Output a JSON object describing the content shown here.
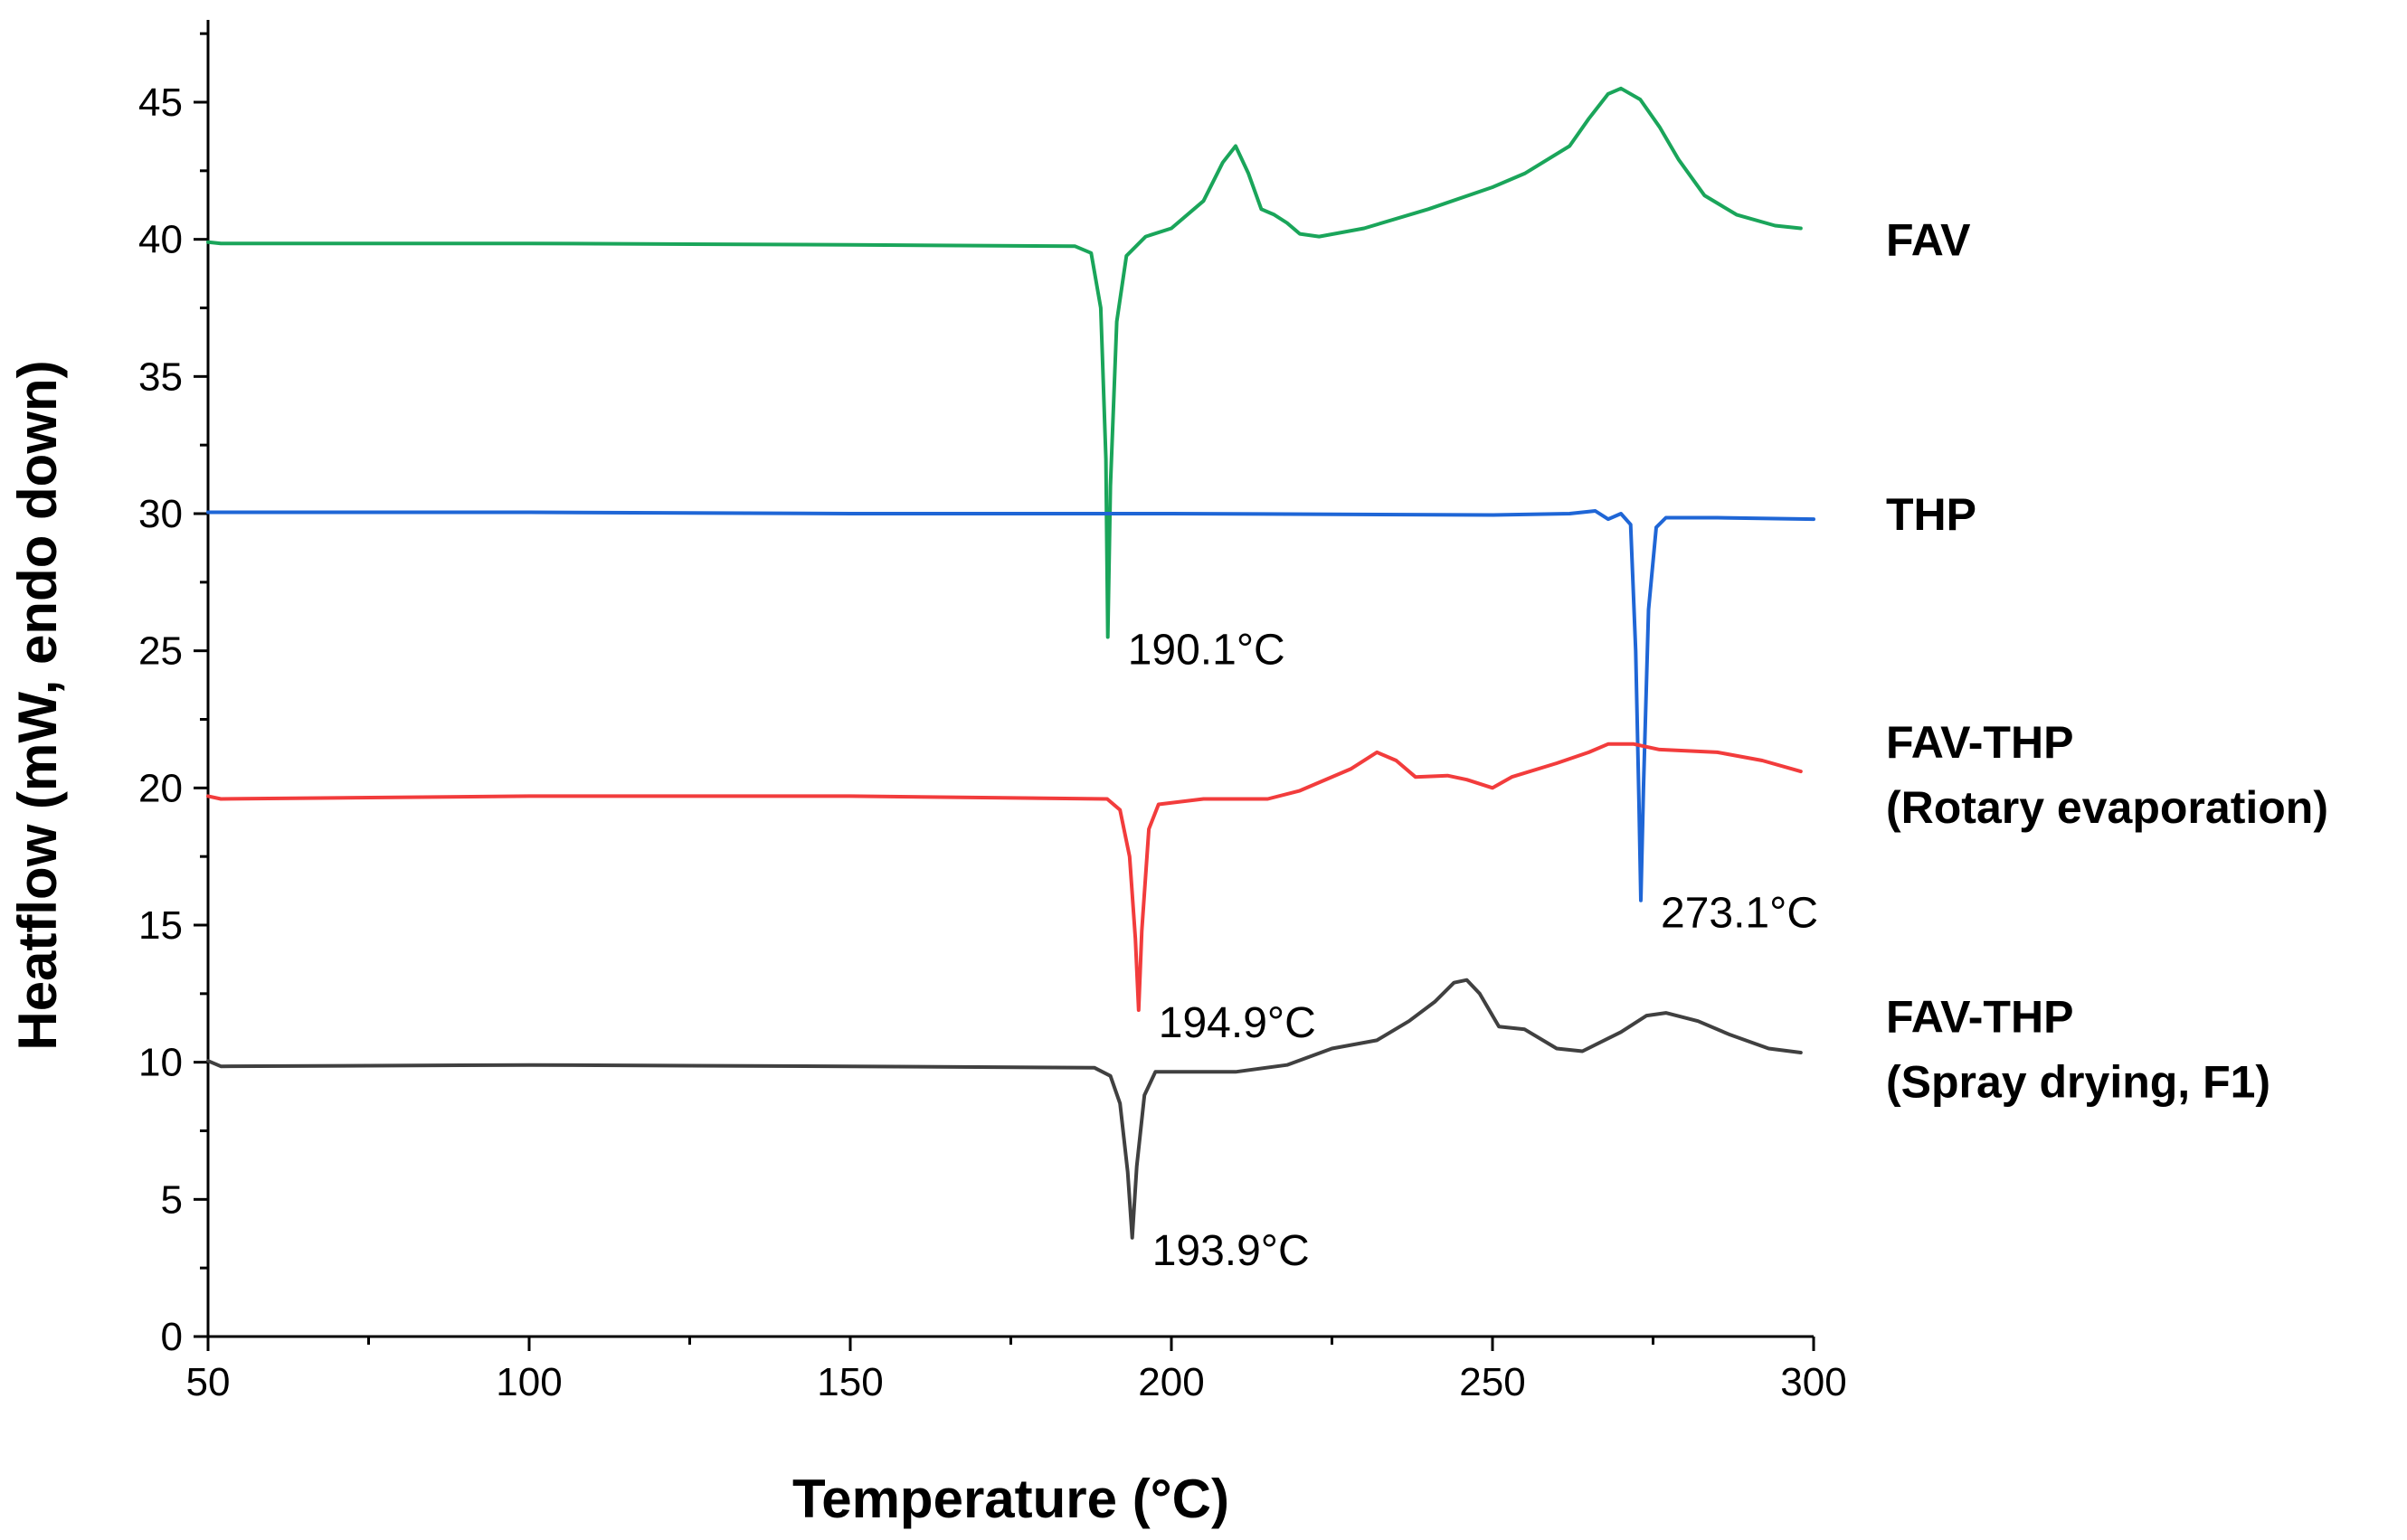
{
  "chart_data": {
    "type": "line",
    "title": "",
    "xlabel": "Temperature (°C)",
    "ylabel": "Heatflow (mW, endo down)",
    "xlim": [
      50,
      300
    ],
    "ylim": [
      0,
      48
    ],
    "x_ticks": [
      50,
      100,
      150,
      200,
      250,
      300
    ],
    "y_ticks": [
      0,
      5,
      10,
      15,
      20,
      25,
      30,
      35,
      40,
      45
    ],
    "grid": false,
    "series": [
      {
        "name": "FAV",
        "label_lines": [
          "FAV"
        ],
        "color": "#1aa55a",
        "points": [
          [
            50,
            39.9
          ],
          [
            52,
            39.85
          ],
          [
            100,
            39.85
          ],
          [
            150,
            39.8
          ],
          [
            185,
            39.75
          ],
          [
            187.5,
            39.5
          ],
          [
            189,
            37.5
          ],
          [
            189.8,
            32
          ],
          [
            190.1,
            25.5
          ],
          [
            190.5,
            31
          ],
          [
            191.5,
            37
          ],
          [
            193,
            39.4
          ],
          [
            196,
            40.1
          ],
          [
            200,
            40.4
          ],
          [
            205,
            41.4
          ],
          [
            208,
            42.8
          ],
          [
            210,
            43.4
          ],
          [
            212,
            42.4
          ],
          [
            214,
            41.1
          ],
          [
            216,
            40.9
          ],
          [
            218,
            40.6
          ],
          [
            220,
            40.2
          ],
          [
            223,
            40.1
          ],
          [
            230,
            40.4
          ],
          [
            240,
            41.1
          ],
          [
            250,
            41.9
          ],
          [
            255,
            42.4
          ],
          [
            262,
            43.4
          ],
          [
            265,
            44.4
          ],
          [
            268,
            45.3
          ],
          [
            270,
            45.5
          ],
          [
            273,
            45.1
          ],
          [
            276,
            44.1
          ],
          [
            279,
            42.9
          ],
          [
            283,
            41.6
          ],
          [
            288,
            40.9
          ],
          [
            294,
            40.5
          ],
          [
            298,
            40.4
          ]
        ]
      },
      {
        "name": "THP",
        "label_lines": [
          "THP"
        ],
        "color": "#1f66d6",
        "points": [
          [
            50,
            30.05
          ],
          [
            100,
            30.05
          ],
          [
            150,
            30.0
          ],
          [
            200,
            30.0
          ],
          [
            250,
            29.95
          ],
          [
            262,
            30.0
          ],
          [
            266,
            30.1
          ],
          [
            268,
            29.8
          ],
          [
            270,
            30.0
          ],
          [
            271.5,
            29.6
          ],
          [
            272.3,
            25
          ],
          [
            272.8,
            19.5
          ],
          [
            273.1,
            15.9
          ],
          [
            273.5,
            20
          ],
          [
            274.3,
            26.5
          ],
          [
            275.5,
            29.5
          ],
          [
            277,
            29.85
          ],
          [
            285,
            29.85
          ],
          [
            300,
            29.8
          ]
        ]
      },
      {
        "name": "FAV-THP (Rotary evaporation)",
        "label_lines": [
          "FAV-THP",
          "(Rotary evaporation)"
        ],
        "color": "#f23c3c",
        "points": [
          [
            50,
            19.7
          ],
          [
            52,
            19.6
          ],
          [
            100,
            19.7
          ],
          [
            150,
            19.7
          ],
          [
            190,
            19.6
          ],
          [
            192,
            19.2
          ],
          [
            193.5,
            17.5
          ],
          [
            194.4,
            14.5
          ],
          [
            194.9,
            11.9
          ],
          [
            195.4,
            14.8
          ],
          [
            196.5,
            18.5
          ],
          [
            198,
            19.4
          ],
          [
            205,
            19.6
          ],
          [
            215,
            19.6
          ],
          [
            220,
            19.9
          ],
          [
            228,
            20.7
          ],
          [
            232,
            21.3
          ],
          [
            235,
            21.0
          ],
          [
            238,
            20.4
          ],
          [
            243,
            20.45
          ],
          [
            246,
            20.3
          ],
          [
            250,
            20.0
          ],
          [
            253,
            20.4
          ],
          [
            260,
            20.9
          ],
          [
            265,
            21.3
          ],
          [
            268,
            21.6
          ],
          [
            272,
            21.6
          ],
          [
            276,
            21.4
          ],
          [
            285,
            21.3
          ],
          [
            292,
            21.0
          ],
          [
            298,
            20.6
          ]
        ]
      },
      {
        "name": "FAV-THP (Spray drying, F1)",
        "label_lines": [
          "FAV-THP",
          "(Spray drying, F1)"
        ],
        "color": "#404040",
        "points": [
          [
            50,
            10.05
          ],
          [
            52,
            9.85
          ],
          [
            100,
            9.9
          ],
          [
            150,
            9.85
          ],
          [
            188,
            9.8
          ],
          [
            190.5,
            9.5
          ],
          [
            192,
            8.5
          ],
          [
            193.2,
            6
          ],
          [
            193.9,
            3.6
          ],
          [
            194.6,
            6.2
          ],
          [
            195.8,
            8.8
          ],
          [
            197.5,
            9.65
          ],
          [
            210,
            9.65
          ],
          [
            218,
            9.9
          ],
          [
            225,
            10.5
          ],
          [
            232,
            10.8
          ],
          [
            237,
            11.5
          ],
          [
            241,
            12.2
          ],
          [
            244,
            12.9
          ],
          [
            246,
            13.0
          ],
          [
            248,
            12.5
          ],
          [
            251,
            11.3
          ],
          [
            255,
            11.2
          ],
          [
            260,
            10.5
          ],
          [
            264,
            10.4
          ],
          [
            270,
            11.1
          ],
          [
            274,
            11.7
          ],
          [
            277,
            11.8
          ],
          [
            282,
            11.5
          ],
          [
            287,
            11.0
          ],
          [
            293,
            10.5
          ],
          [
            298,
            10.35
          ]
        ]
      }
    ],
    "annotations": [
      {
        "text": "190.1°C",
        "x": 190.1,
        "y": 25.5
      },
      {
        "text": "273.1°C",
        "x": 273.1,
        "y": 15.9
      },
      {
        "text": "194.9°C",
        "x": 194.9,
        "y": 11.9
      },
      {
        "text": "193.9°C",
        "x": 193.9,
        "y": 3.6
      }
    ]
  }
}
